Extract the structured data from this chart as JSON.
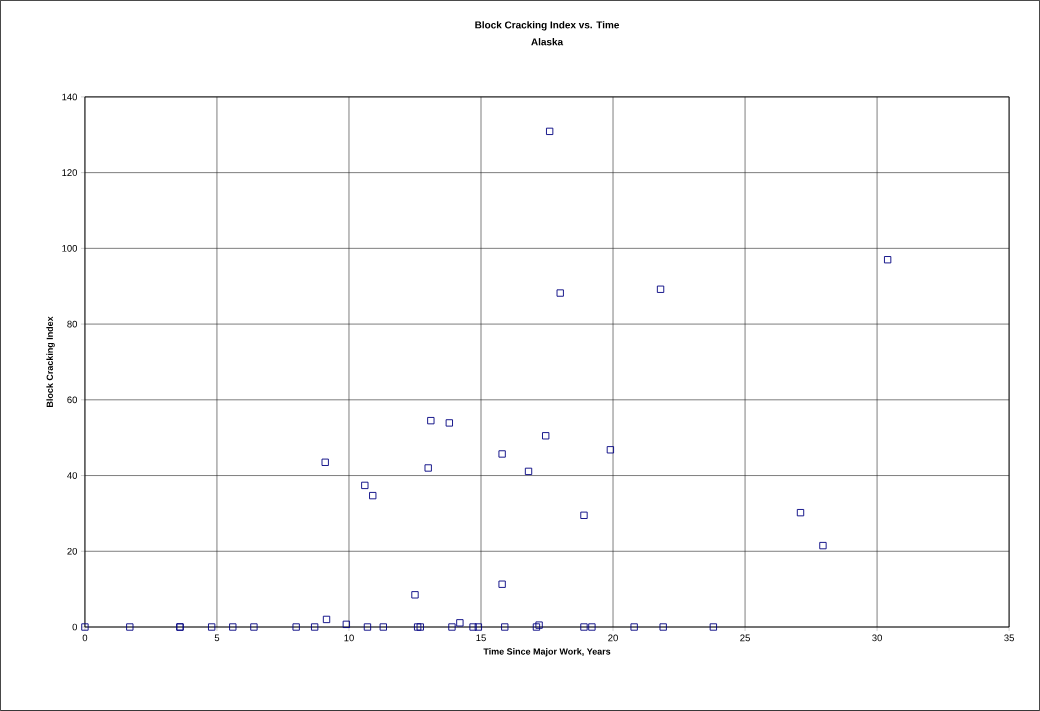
{
  "chart_data": {
    "type": "scatter",
    "title": "Block Cracking Index vs. Time",
    "subtitle": "Alaska",
    "xlabel": "Time Since Major Work, Years",
    "ylabel": "Block Cracking Index",
    "xlim": [
      0,
      35
    ],
    "xticks": [
      0,
      5,
      10,
      15,
      20,
      25,
      30,
      35
    ],
    "ylim": [
      0,
      140
    ],
    "yticks": [
      0,
      20,
      40,
      60,
      80,
      100,
      120,
      140
    ],
    "grid": true,
    "marker": "square",
    "series": [
      {
        "color": "#000080",
        "x": [
          0,
          1.7,
          3.6,
          3.6,
          4.8,
          5.6,
          6.4,
          8.0,
          8.7,
          10.7,
          11.3,
          12.6,
          12.7,
          13.9,
          14.7,
          14.9,
          15.9,
          17.1,
          18.9,
          19.2,
          20.8,
          21.9,
          23.8,
          9.15,
          9.9,
          14.2,
          17.2,
          9.1,
          10.6,
          10.9,
          12.5,
          13.0,
          13.1,
          13.8,
          15.8,
          15.8,
          16.8,
          17.45,
          17.6,
          18.0,
          18.9,
          19.9,
          21.8,
          27.1,
          27.95,
          30.4
        ],
        "values": [
          0,
          0,
          0,
          0,
          0,
          0,
          0,
          0,
          0,
          0,
          0,
          0,
          0,
          0,
          0,
          0,
          0,
          0,
          0,
          0,
          0,
          0,
          0,
          2,
          0.7,
          1.1,
          0.5,
          43.5,
          37.4,
          34.7,
          8.5,
          42,
          54.5,
          53.9,
          45.7,
          11.3,
          41.1,
          50.5,
          130.9,
          88.2,
          29.5,
          46.8,
          89.2,
          30.2,
          21.5,
          97
        ]
      }
    ]
  }
}
